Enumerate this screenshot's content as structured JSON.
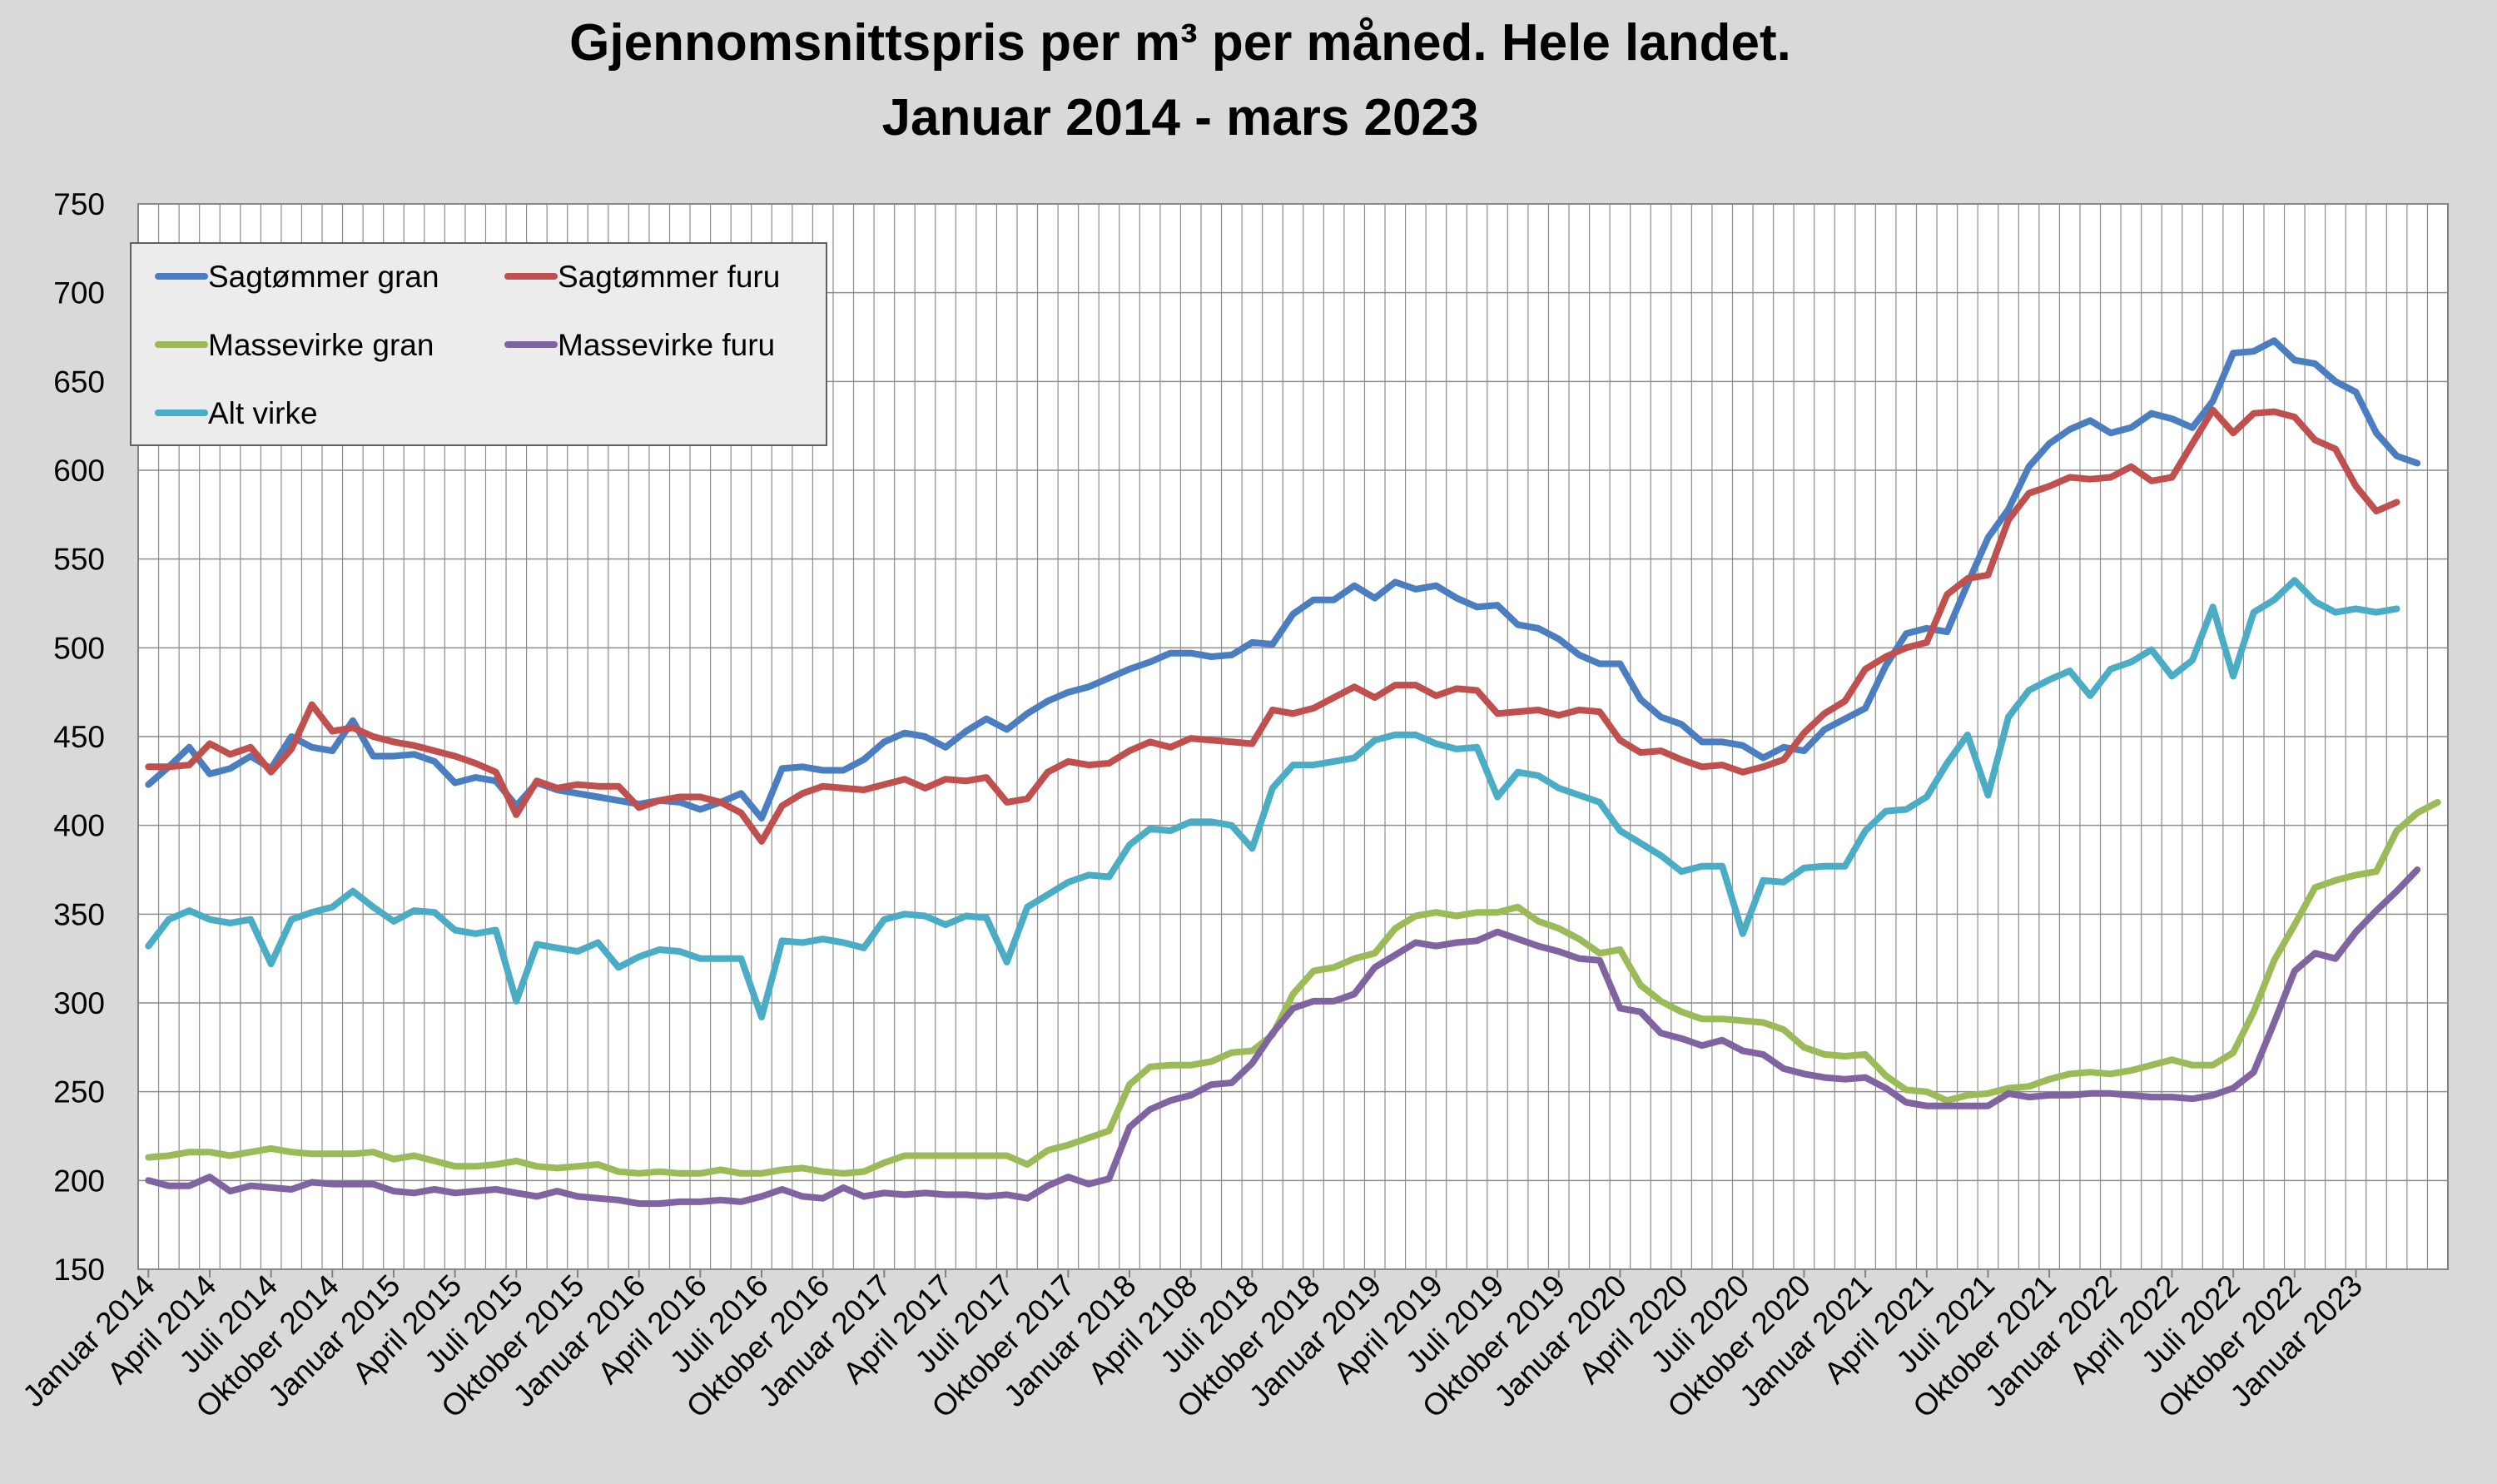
{
  "chart_data": {
    "type": "line",
    "title": "Gjennomsnittspris per m³ per måned.  Hele landet.",
    "subtitle": "Januar 2014 - mars 2023",
    "ylim": [
      150,
      750
    ],
    "yticks": [
      150,
      200,
      250,
      300,
      350,
      400,
      450,
      500,
      550,
      600,
      650,
      700,
      750
    ],
    "grid": true,
    "legend_position": "top-left",
    "x_tick_labels": [
      "Januar 2014",
      "April 2014",
      "Juli 2014",
      "Oktober 2014",
      "Januar 2015",
      "April 2015",
      "Juli 2015",
      "Oktober 2015",
      "Januar 2016",
      "April 2016",
      "Juli 2016",
      "Oktober 2016",
      "Januar 2017",
      "April 2017",
      "Juli 2017",
      "Oktober 2017",
      "Januar 2018",
      "April 2108",
      "Juli 2018",
      "Oktober 2018",
      "Januar 2019",
      "April 2019",
      "Juli 2019",
      "Oktober 2019",
      "Januar 2020",
      "April 2020",
      "Juli 2020",
      "Oktober 2020",
      "Januar 2021",
      "April 2021",
      "Juli 2021",
      "Oktober 2021",
      "Januar 2022",
      "April 2022",
      "Juli 2022",
      "Oktober 2022",
      "Januar 2023"
    ],
    "series": [
      {
        "name": "Sagtømmer gran",
        "color": "#4a7ec1",
        "values": [
          423,
          433,
          444,
          429,
          432,
          439,
          432,
          450,
          444,
          442,
          459,
          439,
          439,
          440,
          436,
          424,
          427,
          425,
          411,
          424,
          420,
          418,
          416,
          414,
          412,
          414,
          413,
          409,
          413,
          418,
          404,
          432,
          433,
          431,
          431,
          437,
          447,
          452,
          450,
          444,
          453,
          460,
          454,
          463,
          470,
          475,
          478,
          483,
          488,
          492,
          497,
          497,
          495,
          496,
          503,
          502,
          519,
          527,
          527,
          535,
          528,
          537,
          533,
          535,
          528,
          523,
          524,
          513,
          511,
          505,
          496,
          491,
          491,
          471,
          461,
          457,
          447,
          447,
          445,
          438,
          444,
          442,
          454,
          460,
          466,
          490,
          508,
          511,
          509,
          536,
          562,
          578,
          602,
          615,
          623,
          628,
          621,
          624,
          632,
          629,
          624,
          639,
          666,
          667,
          673,
          662,
          660,
          650,
          644,
          621,
          608,
          604
        ]
      },
      {
        "name": "Sagtømmer furu",
        "color": "#c0504d",
        "values": [
          433,
          433,
          434,
          446,
          440,
          444,
          430,
          443,
          468,
          453,
          455,
          450,
          447,
          445,
          442,
          439,
          435,
          430,
          406,
          425,
          421,
          423,
          422,
          422,
          410,
          414,
          416,
          416,
          413,
          407,
          391,
          411,
          418,
          422,
          421,
          420,
          423,
          426,
          421,
          426,
          425,
          427,
          413,
          415,
          430,
          436,
          434,
          435,
          442,
          447,
          444,
          449,
          448,
          447,
          446,
          465,
          463,
          466,
          472,
          478,
          472,
          479,
          479,
          473,
          477,
          476,
          463,
          464,
          465,
          462,
          465,
          464,
          448,
          441,
          442,
          437,
          433,
          434,
          430,
          433,
          437,
          452,
          463,
          470,
          488,
          495,
          500,
          503,
          530,
          539,
          541,
          572,
          587,
          591,
          596,
          595,
          596,
          602,
          594,
          596,
          615,
          634,
          621,
          632,
          633,
          630,
          617,
          612,
          591,
          577,
          582
        ]
      },
      {
        "name": "Massevirke gran",
        "color": "#9bbb59",
        "values": [
          213,
          214,
          216,
          216,
          214,
          216,
          218,
          216,
          215,
          215,
          215,
          216,
          212,
          214,
          211,
          208,
          208,
          209,
          211,
          208,
          207,
          208,
          209,
          205,
          204,
          205,
          204,
          204,
          206,
          204,
          204,
          206,
          207,
          205,
          204,
          205,
          210,
          214,
          214,
          214,
          214,
          214,
          214,
          209,
          217,
          220,
          224,
          228,
          254,
          264,
          265,
          265,
          267,
          272,
          273,
          282,
          305,
          318,
          320,
          325,
          328,
          342,
          349,
          351,
          349,
          351,
          351,
          354,
          346,
          342,
          336,
          328,
          330,
          310,
          301,
          295,
          291,
          291,
          290,
          289,
          285,
          275,
          271,
          270,
          271,
          259,
          251,
          250,
          245,
          248,
          249,
          252,
          253,
          257,
          260,
          261,
          260,
          262,
          265,
          268,
          265,
          265,
          272,
          295,
          324,
          344,
          365,
          369,
          372,
          374,
          397,
          407,
          413
        ]
      },
      {
        "name": "Massevirke furu",
        "color": "#8064a2",
        "values": [
          200,
          197,
          197,
          202,
          194,
          197,
          196,
          195,
          199,
          198,
          198,
          198,
          194,
          193,
          195,
          193,
          194,
          195,
          193,
          191,
          194,
          191,
          190,
          189,
          187,
          187,
          188,
          188,
          189,
          188,
          191,
          195,
          191,
          190,
          196,
          191,
          193,
          192,
          193,
          192,
          192,
          191,
          192,
          190,
          197,
          202,
          198,
          201,
          230,
          240,
          245,
          248,
          254,
          255,
          266,
          283,
          297,
          301,
          301,
          305,
          320,
          327,
          334,
          332,
          334,
          335,
          340,
          336,
          332,
          329,
          325,
          324,
          297,
          295,
          283,
          280,
          276,
          279,
          273,
          271,
          263,
          260,
          258,
          257,
          258,
          252,
          244,
          242,
          242,
          242,
          242,
          249,
          247,
          248,
          248,
          249,
          249,
          248,
          247,
          247,
          246,
          248,
          252,
          261,
          289,
          318,
          328,
          325,
          340,
          352,
          363,
          375
        ]
      },
      {
        "name": "Alt virke",
        "color": "#4bacc6",
        "values": [
          332,
          347,
          352,
          347,
          345,
          347,
          322,
          347,
          351,
          354,
          363,
          354,
          346,
          352,
          351,
          341,
          339,
          341,
          301,
          333,
          331,
          329,
          334,
          320,
          326,
          330,
          329,
          325,
          325,
          325,
          292,
          335,
          334,
          336,
          334,
          331,
          347,
          350,
          349,
          344,
          349,
          348,
          323,
          354,
          361,
          368,
          372,
          371,
          389,
          398,
          397,
          402,
          402,
          400,
          387,
          421,
          434,
          434,
          436,
          438,
          448,
          451,
          451,
          446,
          443,
          444,
          416,
          430,
          428,
          421,
          417,
          413,
          397,
          390,
          383,
          374,
          377,
          377,
          339,
          369,
          368,
          376,
          377,
          377,
          397,
          408,
          409,
          416,
          435,
          451,
          417,
          461,
          476,
          482,
          487,
          473,
          488,
          492,
          499,
          484,
          493,
          523,
          484,
          520,
          527,
          538,
          526,
          520,
          522,
          520,
          522
        ]
      }
    ]
  }
}
